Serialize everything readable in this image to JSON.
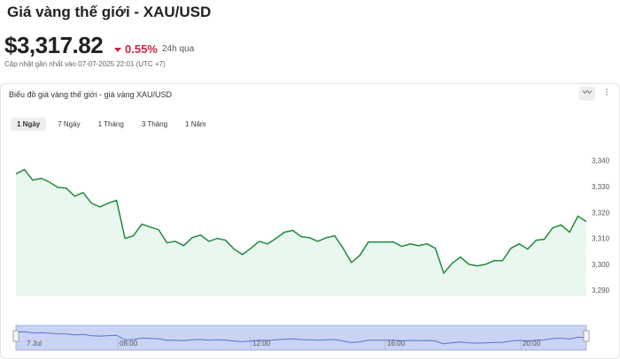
{
  "header": {
    "title": "Giá vàng thế giới - XAU/USD",
    "price": "$3,317.82",
    "change": "0.55%",
    "period": "24h qua",
    "updated": "Cập nhật gần nhất vào 07-07-2025 22:01 (UTC +7)"
  },
  "card": {
    "title": "Biểu đồ giá vàng thế giới - giá vàng XAU/USD",
    "tabs": [
      "1 Ngày",
      "7 Ngày",
      "1 Tháng",
      "3 Tháng",
      "1 Năm"
    ],
    "navigator_labels": [
      "7 Jul",
      "08:00",
      "12:00",
      "16:00",
      "20:00"
    ]
  },
  "chart_data": {
    "type": "line",
    "color": "#1f8a3c",
    "fill": "#eaf7ee",
    "values": [
      3335.2,
      3336.9,
      3332.8,
      3333.5,
      3332,
      3330,
      3329.7,
      3326.6,
      3328,
      3323.9,
      3322.5,
      3323.9,
      3325,
      3310.3,
      3311.3,
      3315.8,
      3314.7,
      3313.7,
      3308.6,
      3309.2,
      3307.5,
      3310.6,
      3311.6,
      3309.2,
      3310.3,
      3309.6,
      3306.2,
      3304.1,
      3306.5,
      3309.2,
      3308.2,
      3310.3,
      3312.7,
      3313.4,
      3311,
      3310.6,
      3309.2,
      3310.6,
      3311.3,
      3306.5,
      3301,
      3303.8,
      3308.9,
      3308.9,
      3308.9,
      3308.9,
      3307.2,
      3308.2,
      3307.5,
      3308.2,
      3306.5,
      3296.9,
      3300.7,
      3303.1,
      3300.3,
      3299.7,
      3300.3,
      3301.7,
      3301.7,
      3306.5,
      3308.2,
      3306.2,
      3309.6,
      3310,
      3314.4,
      3315.5,
      3312.7,
      3318.9,
      3316.8
    ],
    "ylim": [
      3288,
      3346
    ],
    "yticks": [
      {
        "value": 3290,
        "label": "3,290"
      },
      {
        "value": 3300,
        "label": "3,300"
      },
      {
        "value": 3310,
        "label": "3,310"
      },
      {
        "value": 3320,
        "label": "3,320"
      },
      {
        "value": 3330,
        "label": "3,330"
      },
      {
        "value": 3340,
        "label": "3,340"
      }
    ],
    "grid": false
  }
}
